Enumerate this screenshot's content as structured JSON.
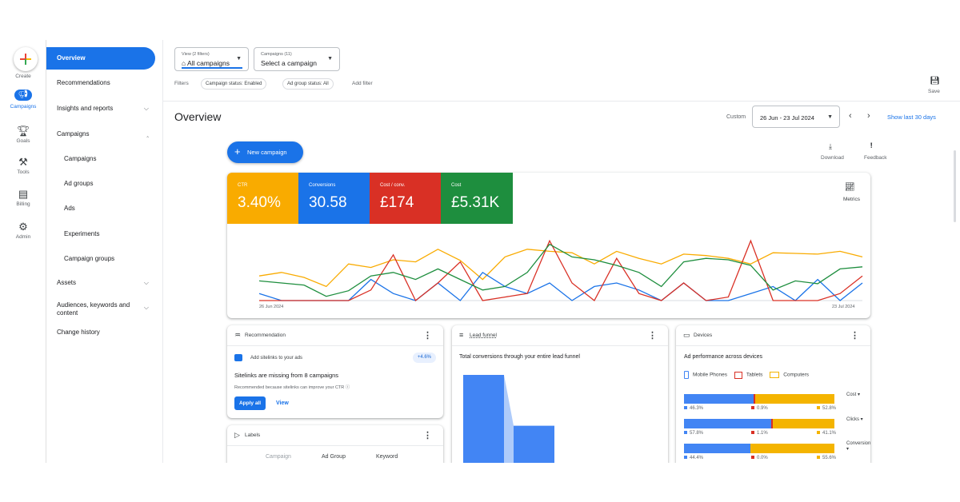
{
  "rail": {
    "create": "Create",
    "campaigns": "Campaigns",
    "goals": "Goals",
    "tools": "Tools",
    "billing": "Billing",
    "admin": "Admin"
  },
  "nav": {
    "overview": "Overview",
    "recommendations": "Recommendations",
    "insights": "Insights and reports",
    "campaigns_group": "Campaigns",
    "campaigns": "Campaigns",
    "ad_groups": "Ad groups",
    "ads": "Ads",
    "experiments": "Experiments",
    "campaign_groups": "Campaign groups",
    "assets": "Assets",
    "audiences_1": "Audiences, keywords and",
    "audiences_2": "content",
    "change_history": "Change history"
  },
  "toolbar": {
    "view_small": "View (2 filters)",
    "view_value": "All campaigns",
    "campaigns_small": "Campaigns (11)",
    "campaigns_value": "Select a campaign",
    "filters_label": "Filters",
    "filter_1": "Campaign status: Enabled",
    "filter_2": "Ad group status: All",
    "add_filter": "Add filter",
    "save": "Save"
  },
  "page": {
    "title": "Overview",
    "custom": "Custom",
    "date_range": "26 Jun - 23 Jul 2024",
    "show_last": "Show last 30 days",
    "new_campaign": "New campaign",
    "download": "Download",
    "feedback": "Feedback"
  },
  "metrics": {
    "ctr_label": "CTR",
    "ctr_value": "3.40%",
    "conv_label": "Conversions",
    "conv_value": "30.58",
    "cpc_label": "Cost / conv.",
    "cpc_value": "£174",
    "cost_label": "Cost",
    "cost_value": "£5.31K",
    "metrics_btn": "Metrics",
    "x_start": "26 Jun 2024",
    "x_end": "23 Jul 2024",
    "colors": {
      "ctr": "#f9ab00",
      "conversions": "#1a73e8",
      "cost_conv": "#d93025",
      "cost": "#1e8e3e"
    }
  },
  "chart_data": {
    "type": "line",
    "x": [
      "26 Jun 2024",
      "",
      "",
      "",
      "",
      "",
      "",
      "",
      "",
      "",
      "",
      "",
      "",
      "",
      "",
      "",
      "",
      "",
      "",
      "",
      "",
      "",
      "",
      "",
      "",
      "",
      "",
      "23 Jul 2024"
    ],
    "series": [
      {
        "name": "CTR",
        "values": [
          35,
          40,
          33,
          20,
          52,
          47,
          58,
          55,
          73,
          57,
          30,
          62,
          73,
          70,
          68,
          52,
          70,
          60,
          52,
          66,
          64,
          60,
          52,
          68,
          67,
          66,
          70,
          62
        ]
      },
      {
        "name": "Conversions",
        "values": [
          10,
          0,
          0,
          0,
          0,
          30,
          10,
          0,
          25,
          0,
          40,
          20,
          10,
          25,
          0,
          20,
          25,
          15,
          0,
          25,
          0,
          0,
          10,
          20,
          0,
          30,
          0,
          25
        ]
      },
      {
        "name": "Cost / conv.",
        "values": [
          0,
          0,
          0,
          0,
          0,
          15,
          65,
          0,
          25,
          55,
          0,
          5,
          10,
          85,
          25,
          0,
          60,
          10,
          0,
          25,
          0,
          5,
          85,
          0,
          0,
          0,
          10,
          35
        ]
      },
      {
        "name": "Cost",
        "values": [
          28,
          25,
          22,
          6,
          14,
          35,
          40,
          30,
          45,
          30,
          15,
          20,
          40,
          80,
          62,
          58,
          50,
          40,
          20,
          55,
          60,
          58,
          50,
          15,
          28,
          24,
          45,
          48
        ]
      }
    ]
  },
  "recommendation": {
    "header": "Recommendation",
    "item": "Add sitelinks to your ads",
    "uplift": "+4.6%",
    "headline": "Sitelinks are missing from 8 campaigns",
    "reason": "Recommended because sitelinks can improve your CTR",
    "apply": "Apply all",
    "view": "View"
  },
  "labels": {
    "header": "Labels",
    "col1": "Campaign",
    "col2": "Ad Group",
    "col3": "Keyword"
  },
  "funnel": {
    "header": "Lead funnel",
    "subtitle": "Total conversions through your entire lead funnel",
    "bars": [
      100,
      47
    ]
  },
  "devices": {
    "header": "Devices",
    "subtitle": "Ad performance across devices",
    "legend_mobile": "Mobile Phones",
    "legend_tablets": "Tablets",
    "legend_computers": "Computers",
    "rows": [
      {
        "metric": "Cost",
        "mobile": 46.3,
        "tablet": 0.9,
        "computer": 52.8,
        "mobile_txt": "46.3%",
        "tablet_txt": "0.9%",
        "computer_txt": "52.8%"
      },
      {
        "metric": "Clicks",
        "mobile": 57.8,
        "tablet": 1.1,
        "computer": 41.1,
        "mobile_txt": "57.8%",
        "tablet_txt": "1.1%",
        "computer_txt": "41.1%"
      },
      {
        "metric": "Conversions",
        "mobile": 44.4,
        "tablet": 0.0,
        "computer": 55.6,
        "mobile_txt": "44.4%",
        "tablet_txt": "0.0%",
        "computer_txt": "55.6%"
      }
    ],
    "colors": {
      "mobile": "#4285f4",
      "tablet": "#d93025",
      "computer": "#f4b400"
    }
  }
}
